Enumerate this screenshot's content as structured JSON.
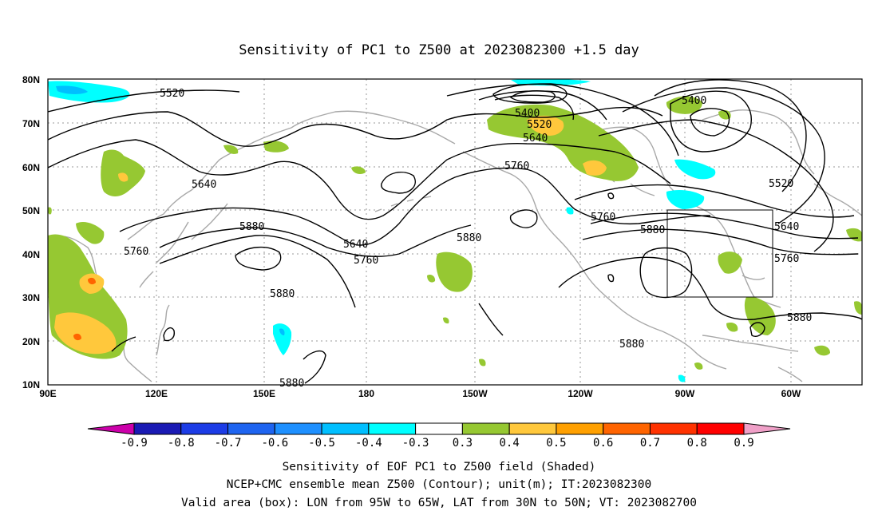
{
  "title": "Sensitivity of PC1 to Z500 at 2023082300 +1.5 day",
  "lat_labels": [
    "80N",
    "70N",
    "60N",
    "50N",
    "40N",
    "30N",
    "20N",
    "10N"
  ],
  "lon_labels": [
    "90E",
    "120E",
    "150E",
    "180",
    "150W",
    "120W",
    "90W",
    "60W"
  ],
  "contour_labels": [
    "5520",
    "5640",
    "5760",
    "5880",
    "5400",
    "5520",
    "5640",
    "5760",
    "5640",
    "5760",
    "5880",
    "5880",
    "5880",
    "5400",
    "5520",
    "5640",
    "5760",
    "5880",
    "5880",
    "5880",
    "5880"
  ],
  "colorbar": {
    "ticks": [
      "-0.9",
      "-0.8",
      "-0.7",
      "-0.6",
      "-0.5",
      "-0.4",
      "-0.3",
      "0.3",
      "0.4",
      "0.5",
      "0.6",
      "0.7",
      "0.8",
      "0.9"
    ],
    "colors": [
      "#cc00aa",
      "#1a1ab4",
      "#1c3ce6",
      "#1e64f0",
      "#1e90ff",
      "#00bfff",
      "#00ffff",
      "#ffffff",
      "#96c832",
      "#ffc83c",
      "#ffa000",
      "#ff6400",
      "#ff3200",
      "#ff0000",
      "#f0a0c8"
    ]
  },
  "caption": {
    "line1": "Sensitivity of EOF PC1 to Z500 field (Shaded)",
    "line2": "NCEP+CMC ensemble mean Z500 (Contour); unit(m); IT:2023082300",
    "line3": "Valid area (box): LON from 95W to 65W, LAT from 30N to 50N; VT: 2023082700"
  },
  "valid_box": {
    "lon_west": "95W",
    "lon_east": "65W",
    "lat_south": "30N",
    "lat_north": "50N"
  }
}
